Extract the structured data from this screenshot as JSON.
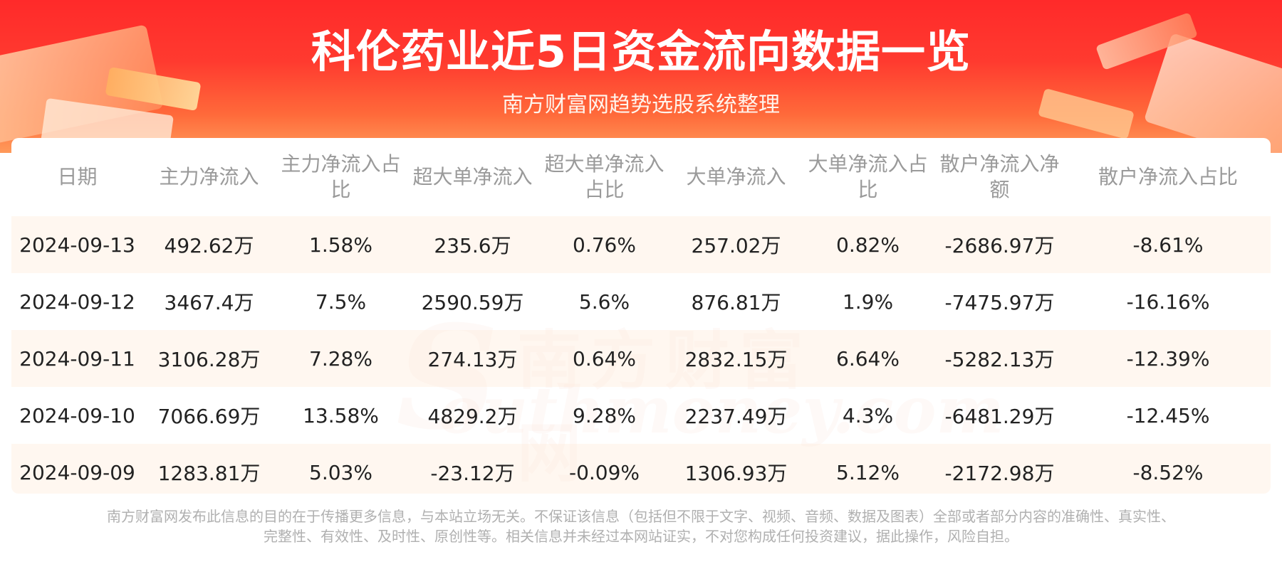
{
  "header": {
    "title": "科伦药业近5日资金流向数据一览",
    "subtitle": "南方财富网趋势选股系统整理"
  },
  "watermark": {
    "cn": "南方财富网",
    "en": "outhmoney.com",
    "s": "S"
  },
  "table": {
    "columns": [
      "日期",
      "主力净流入",
      "主力净流入占比",
      "超大单净流入",
      "超大单净流入占比",
      "大单净流入",
      "大单净流入占比",
      "散户净流入净额",
      "散户净流入占比"
    ],
    "rows": [
      [
        "2024-09-13",
        "492.62万",
        "1.58%",
        "235.6万",
        "0.76%",
        "257.02万",
        "0.82%",
        "-2686.97万",
        "-8.61%"
      ],
      [
        "2024-09-12",
        "3467.4万",
        "7.5%",
        "2590.59万",
        "5.6%",
        "876.81万",
        "1.9%",
        "-7475.97万",
        "-16.16%"
      ],
      [
        "2024-09-11",
        "3106.28万",
        "7.28%",
        "274.13万",
        "0.64%",
        "2832.15万",
        "6.64%",
        "-5282.13万",
        "-12.39%"
      ],
      [
        "2024-09-10",
        "7066.69万",
        "13.58%",
        "4829.2万",
        "9.28%",
        "2237.49万",
        "4.3%",
        "-6481.29万",
        "-12.45%"
      ],
      [
        "2024-09-09",
        "1283.81万",
        "5.03%",
        "-23.12万",
        "-0.09%",
        "1306.93万",
        "5.12%",
        "-2172.98万",
        "-8.52%"
      ]
    ]
  },
  "footer": {
    "line1": "南方财富网发布此信息的目的在于传播更多信息，与本站立场无关。不保证该信息（包括但不限于文字、视频、音频、数据及图表）全部或者部分内容的准确性、真实性、",
    "line2": "完整性、有效性、及时性、原创性等。相关信息并未经过本网站证实，不对您构成任何投资建议，据此操作，风险自担。"
  },
  "colors": {
    "banner": "#ff2a2a",
    "row_stripe": "#fff4eb",
    "header_text": "#9a9a9a"
  }
}
